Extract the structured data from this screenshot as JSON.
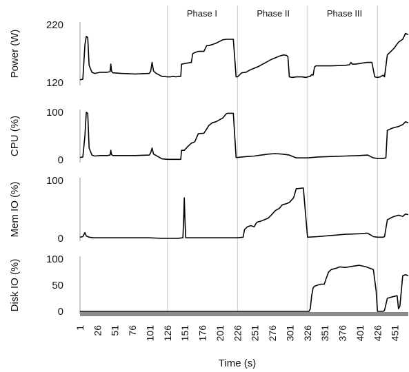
{
  "chart_data": {
    "type": "line",
    "xlabel": "Time (s)",
    "x_ticks": [
      1,
      26,
      51,
      76,
      101,
      126,
      151,
      176,
      201,
      226,
      251,
      276,
      301,
      326,
      351,
      376,
      401,
      426,
      451
    ],
    "x_range": [
      1,
      470
    ],
    "phases": [
      {
        "label": "Phase I",
        "start": 126,
        "end": 226
      },
      {
        "label": "Phase II",
        "start": 226,
        "end": 326
      },
      {
        "label": "Phase III",
        "start": 326,
        "end": 426
      }
    ],
    "phase_boundaries": [
      126,
      226,
      326,
      426
    ],
    "panels": [
      {
        "ylabel": "Power (W)",
        "ylim": [
          120,
          220
        ],
        "y_ticks": [
          120,
          220
        ],
        "x": [
          1,
          5,
          8,
          10,
          12,
          14,
          18,
          22,
          30,
          40,
          44,
          45,
          46,
          48,
          60,
          80,
          100,
          102,
          104,
          106,
          110,
          118,
          126,
          130,
          134,
          138,
          142,
          145,
          146,
          147,
          150,
          155,
          160,
          162,
          165,
          170,
          178,
          182,
          185,
          190,
          195,
          205,
          210,
          212,
          216,
          220,
          224,
          226,
          232,
          238,
          244,
          250,
          256,
          262,
          268,
          274,
          280,
          286,
          292,
          296,
          298,
          300,
          304,
          310,
          318,
          324,
          326,
          330,
          332,
          334,
          336,
          338,
          345,
          360,
          380,
          386,
          388,
          390,
          395,
          405,
          412,
          418,
          422,
          426,
          430,
          434,
          436,
          440,
          446,
          450,
          456,
          462,
          466,
          470
        ],
        "values": [
          125,
          126,
          185,
          200,
          198,
          150,
          138,
          136,
          138,
          138,
          139,
          152,
          140,
          137,
          136,
          135,
          136,
          140,
          155,
          140,
          136,
          131,
          130,
          130,
          131,
          130,
          131,
          131,
          152,
          152,
          153,
          154,
          155,
          170,
          172,
          174,
          174,
          184,
          184,
          186,
          188,
          194,
          195,
          195,
          195,
          195,
          130,
          130,
          137,
          138,
          142,
          145,
          148,
          152,
          156,
          160,
          163,
          166,
          168,
          167,
          165,
          130,
          129,
          130,
          130,
          129,
          130,
          131,
          134,
          133,
          147,
          149,
          149,
          149,
          150,
          151,
          155,
          152,
          152,
          154,
          155,
          155,
          130,
          129,
          130,
          133,
          130,
          168,
          175,
          180,
          190,
          195,
          205,
          203
        ]
      },
      {
        "ylabel": "CPU (%)",
        "ylim": [
          0,
          100
        ],
        "y_ticks": [
          0,
          100
        ],
        "x": [
          1,
          5,
          8,
          10,
          12,
          14,
          18,
          22,
          30,
          40,
          44,
          45,
          46,
          48,
          60,
          80,
          100,
          102,
          104,
          106,
          110,
          118,
          126,
          130,
          134,
          138,
          142,
          145,
          146,
          147,
          150,
          155,
          160,
          162,
          165,
          170,
          178,
          182,
          185,
          190,
          195,
          205,
          210,
          212,
          216,
          220,
          224,
          226,
          232,
          240,
          250,
          260,
          270,
          280,
          290,
          300,
          310,
          318,
          326,
          340,
          360,
          380,
          400,
          412,
          420,
          426,
          430,
          434,
          438,
          440,
          446,
          450,
          456,
          462,
          466,
          470
        ],
        "values": [
          5,
          6,
          50,
          100,
          98,
          25,
          10,
          8,
          9,
          9,
          10,
          20,
          11,
          9,
          9,
          9,
          10,
          15,
          25,
          12,
          9,
          2,
          1,
          1,
          1,
          1,
          1,
          1,
          20,
          20,
          20,
          28,
          35,
          36,
          38,
          55,
          56,
          65,
          72,
          78,
          80,
          88,
          97,
          98,
          98,
          98,
          5,
          5,
          6,
          7,
          8,
          10,
          12,
          13,
          12,
          10,
          4,
          4,
          4,
          6,
          7,
          8,
          9,
          10,
          4,
          3,
          3,
          3,
          4,
          62,
          66,
          68,
          70,
          74,
          80,
          78
        ]
      },
      {
        "ylabel": "Mem IO (%)",
        "ylim": [
          0,
          100
        ],
        "y_ticks": [
          0,
          100
        ],
        "x": [
          1,
          5,
          8,
          10,
          14,
          20,
          40,
          60,
          80,
          100,
          118,
          126,
          140,
          148,
          149,
          150,
          151,
          152,
          170,
          200,
          220,
          226,
          234,
          236,
          240,
          245,
          250,
          252,
          254,
          260,
          264,
          270,
          274,
          280,
          286,
          290,
          296,
          300,
          306,
          310,
          312,
          320,
          326,
          340,
          360,
          380,
          400,
          412,
          420,
          426,
          432,
          434,
          436,
          440,
          446,
          450,
          456,
          462,
          466,
          470
        ],
        "values": [
          2,
          3,
          10,
          4,
          2,
          1,
          1,
          1,
          1,
          1,
          0,
          0,
          0,
          1,
          30,
          70,
          30,
          1,
          1,
          1,
          1,
          1,
          2,
          15,
          20,
          22,
          20,
          25,
          28,
          30,
          32,
          35,
          40,
          48,
          52,
          58,
          60,
          62,
          70,
          86,
          86,
          87,
          2,
          3,
          5,
          7,
          8,
          9,
          3,
          2,
          2,
          2,
          3,
          32,
          36,
          38,
          40,
          38,
          42,
          41
        ]
      },
      {
        "ylabel": "Disk IO (%)",
        "ylim": [
          0,
          100
        ],
        "y_ticks": [
          0,
          50,
          100
        ],
        "x": [
          1,
          120,
          200,
          300,
          326,
          328,
          330,
          332,
          334,
          336,
          340,
          345,
          350,
          352,
          356,
          360,
          366,
          372,
          380,
          390,
          400,
          410,
          416,
          420,
          424,
          426,
          430,
          434,
          436,
          440,
          448,
          454,
          456,
          458,
          462,
          466,
          470
        ],
        "values": [
          0,
          0,
          0,
          0,
          0,
          0,
          5,
          30,
          45,
          48,
          50,
          52,
          52,
          60,
          75,
          80,
          82,
          85,
          84,
          86,
          88,
          85,
          82,
          80,
          40,
          0,
          0,
          0,
          2,
          25,
          28,
          30,
          5,
          10,
          68,
          70,
          68
        ]
      }
    ]
  }
}
